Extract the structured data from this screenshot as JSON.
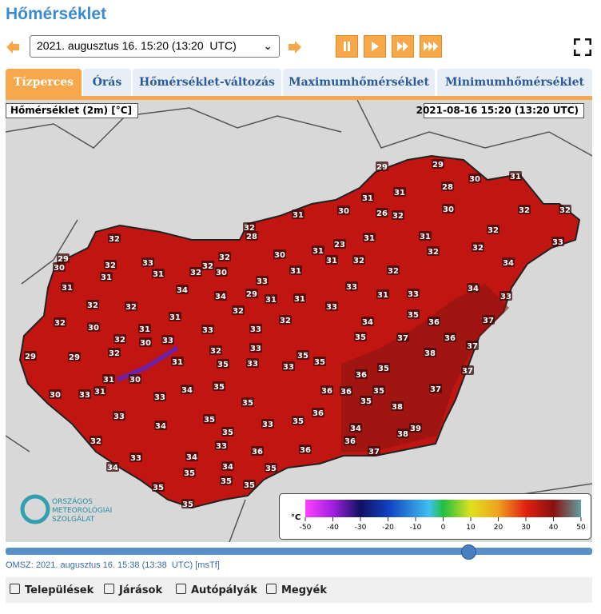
{
  "header": {
    "title": "Hőmérséklet"
  },
  "controls": {
    "datetime": "2021. augusztus 16. 15:20 (13:20  UTC)"
  },
  "tabs": [
    "Tízperces",
    "Órás",
    "Hőmérséklet-változás",
    "Maximumhőmérséklet",
    "Minimumhőmérséklet"
  ],
  "map": {
    "title": "Hőmérséklet (2m) [°C]",
    "timestamp": "2021-08-16 15:20 (13:20 UTC)",
    "temperatures": [
      29,
      29,
      30,
      31,
      28,
      31,
      31,
      31,
      30,
      26,
      32,
      30,
      32,
      32,
      32,
      28,
      32,
      31,
      31,
      32,
      33,
      23,
      31,
      32,
      32,
      30,
      29,
      30,
      32,
      33,
      32,
      32,
      31,
      32,
      34,
      31,
      32,
      30,
      31,
      32,
      31,
      31,
      33,
      34,
      33,
      34,
      34,
      29,
      31,
      31,
      31,
      33,
      33,
      32,
      32,
      32,
      33,
      32,
      31,
      32,
      34,
      35,
      36,
      37,
      30,
      31,
      33,
      33,
      32,
      30,
      33,
      35,
      37,
      36,
      37,
      29,
      29,
      32,
      32,
      33,
      35,
      38,
      31,
      35,
      33,
      33,
      35,
      35,
      36,
      37,
      30,
      31,
      31,
      34,
      35,
      36,
      36,
      35,
      37,
      30,
      33,
      33,
      35,
      35,
      38,
      33,
      36,
      35,
      34,
      33,
      35,
      34,
      39,
      38,
      32,
      35,
      36,
      33,
      36,
      36,
      37,
      34,
      34,
      33,
      35,
      34,
      35,
      35,
      35,
      35,
      35
    ],
    "logo": [
      "ORSZÁGOS",
      "METEOROLÓGIAI",
      "SZOLGÁLAT"
    ],
    "colorbar": {
      "unit": "°C",
      "ticks": [
        -50,
        -40,
        -30,
        -20,
        -10,
        0,
        10,
        20,
        30,
        40,
        50
      ]
    }
  },
  "footer": {
    "updated": "OMSZ: 2021. augusztus 16. 15:38 (13:38  UTC)",
    "link": "[msTf]"
  },
  "layers": [
    "Települések",
    "Járások",
    "Autópályák",
    "Megyék"
  ]
}
